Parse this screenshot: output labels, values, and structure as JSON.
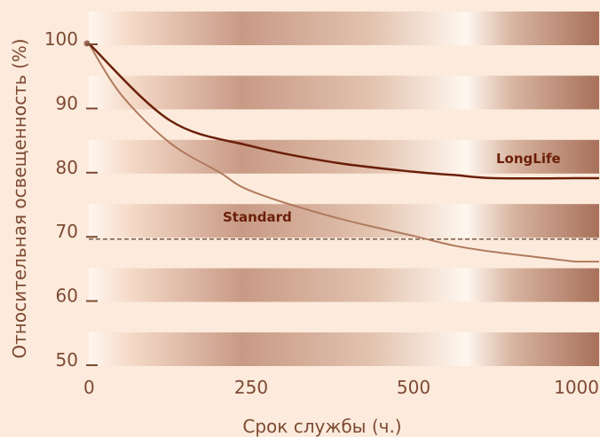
{
  "chart_data": {
    "type": "line",
    "title": "",
    "xlabel": "Срок службы (ч.)",
    "ylabel": "Относительная освещенность (%)",
    "x_ticks": [
      0,
      250,
      500,
      1000
    ],
    "x_tick_labels": [
      "0",
      "250",
      "500",
      "1000"
    ],
    "x_axis_note": "category-spaced ticks: 0, 250, 500, 1000",
    "y_ticks": [
      100,
      90,
      80,
      70,
      60,
      50
    ],
    "y_tick_labels": [
      "100",
      "90",
      "80",
      "70",
      "60",
      "50"
    ],
    "ylim": [
      50,
      100
    ],
    "grid": "horizontal gradient bands at each 10%",
    "reference_line": {
      "y": 69.5,
      "style": "dashed"
    },
    "series": [
      {
        "name": "LongLife",
        "color": "#6b1f08",
        "points": [
          [
            0,
            100
          ],
          [
            125,
            88
          ],
          [
            250,
            84
          ],
          [
            375,
            81.5
          ],
          [
            500,
            80
          ],
          [
            625,
            79.5
          ],
          [
            750,
            79
          ],
          [
            1000,
            79
          ]
        ]
      },
      {
        "name": "Standard",
        "color": "#b07a5e",
        "points": [
          [
            0,
            100
          ],
          [
            50,
            92
          ],
          [
            125,
            84.5
          ],
          [
            200,
            80
          ],
          [
            250,
            77
          ],
          [
            375,
            73
          ],
          [
            500,
            70
          ],
          [
            625,
            68.5
          ],
          [
            750,
            67.5
          ],
          [
            1000,
            66
          ]
        ]
      }
    ]
  },
  "colors": {
    "background": "#fcebdc",
    "band_light": "#fff4ea",
    "band_dark": "#a8705a",
    "text": "#7d4a33"
  }
}
